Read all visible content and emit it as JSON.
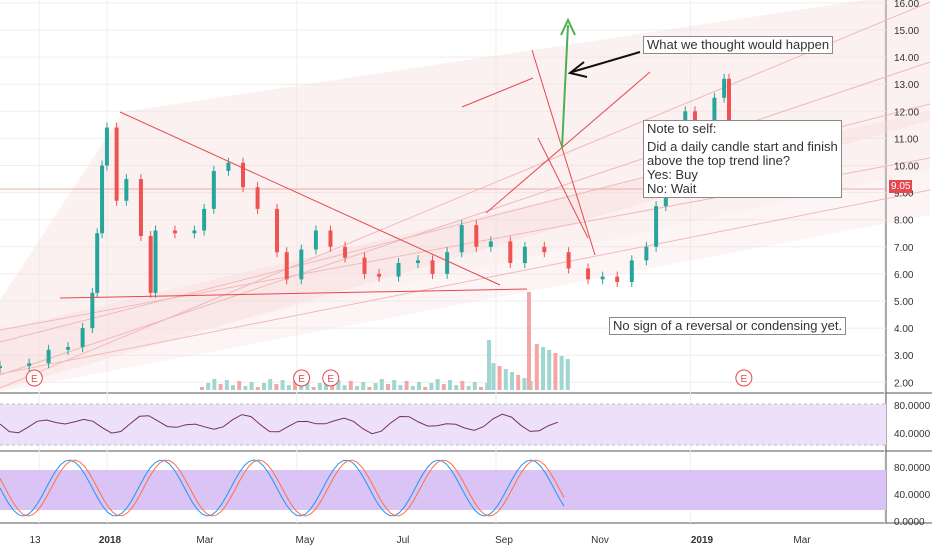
{
  "chart_data": {
    "type": "candlestick",
    "main": {
      "price_axis_ticks": [
        "16.00",
        "15.00",
        "14.00",
        "13.00",
        "12.00",
        "11.00",
        "10.00",
        "9.00",
        "8.00",
        "7.00",
        "6.00",
        "5.00",
        "4.00",
        "3.00",
        "2.00"
      ],
      "last_price": "9.05",
      "ylim": [
        1.8,
        16.0
      ],
      "earnings_marker": "E",
      "earnings_positions": [
        0.25,
        3.0,
        3.3,
        7.55
      ],
      "annotations": [
        "What we thought would happen",
        "Note to self:",
        "Did a daily candle start and finish",
        "above the top trend line?",
        "Yes: Buy",
        "No: Wait",
        "No sign of a reversal or condensing yet."
      ],
      "colors": {
        "up": "#26a69a",
        "down": "#ef5350",
        "trend": "#e5484d",
        "arrow_up": "#4caf50",
        "channel": "#f7d6d6"
      }
    },
    "rsi_pane": {
      "ticks": [
        "80.0000",
        "40.0000"
      ],
      "upper": 80,
      "lower": 40
    },
    "stoch_pane": {
      "ticks": [
        "80.0000",
        "40.0000",
        "0.0000"
      ],
      "upper": 80,
      "lower": 20
    },
    "x_axis": {
      "labels": [
        "13",
        "2018",
        "Mar",
        "May",
        "Jul",
        "Sep",
        "Nov",
        "2019",
        "Mar"
      ]
    }
  }
}
